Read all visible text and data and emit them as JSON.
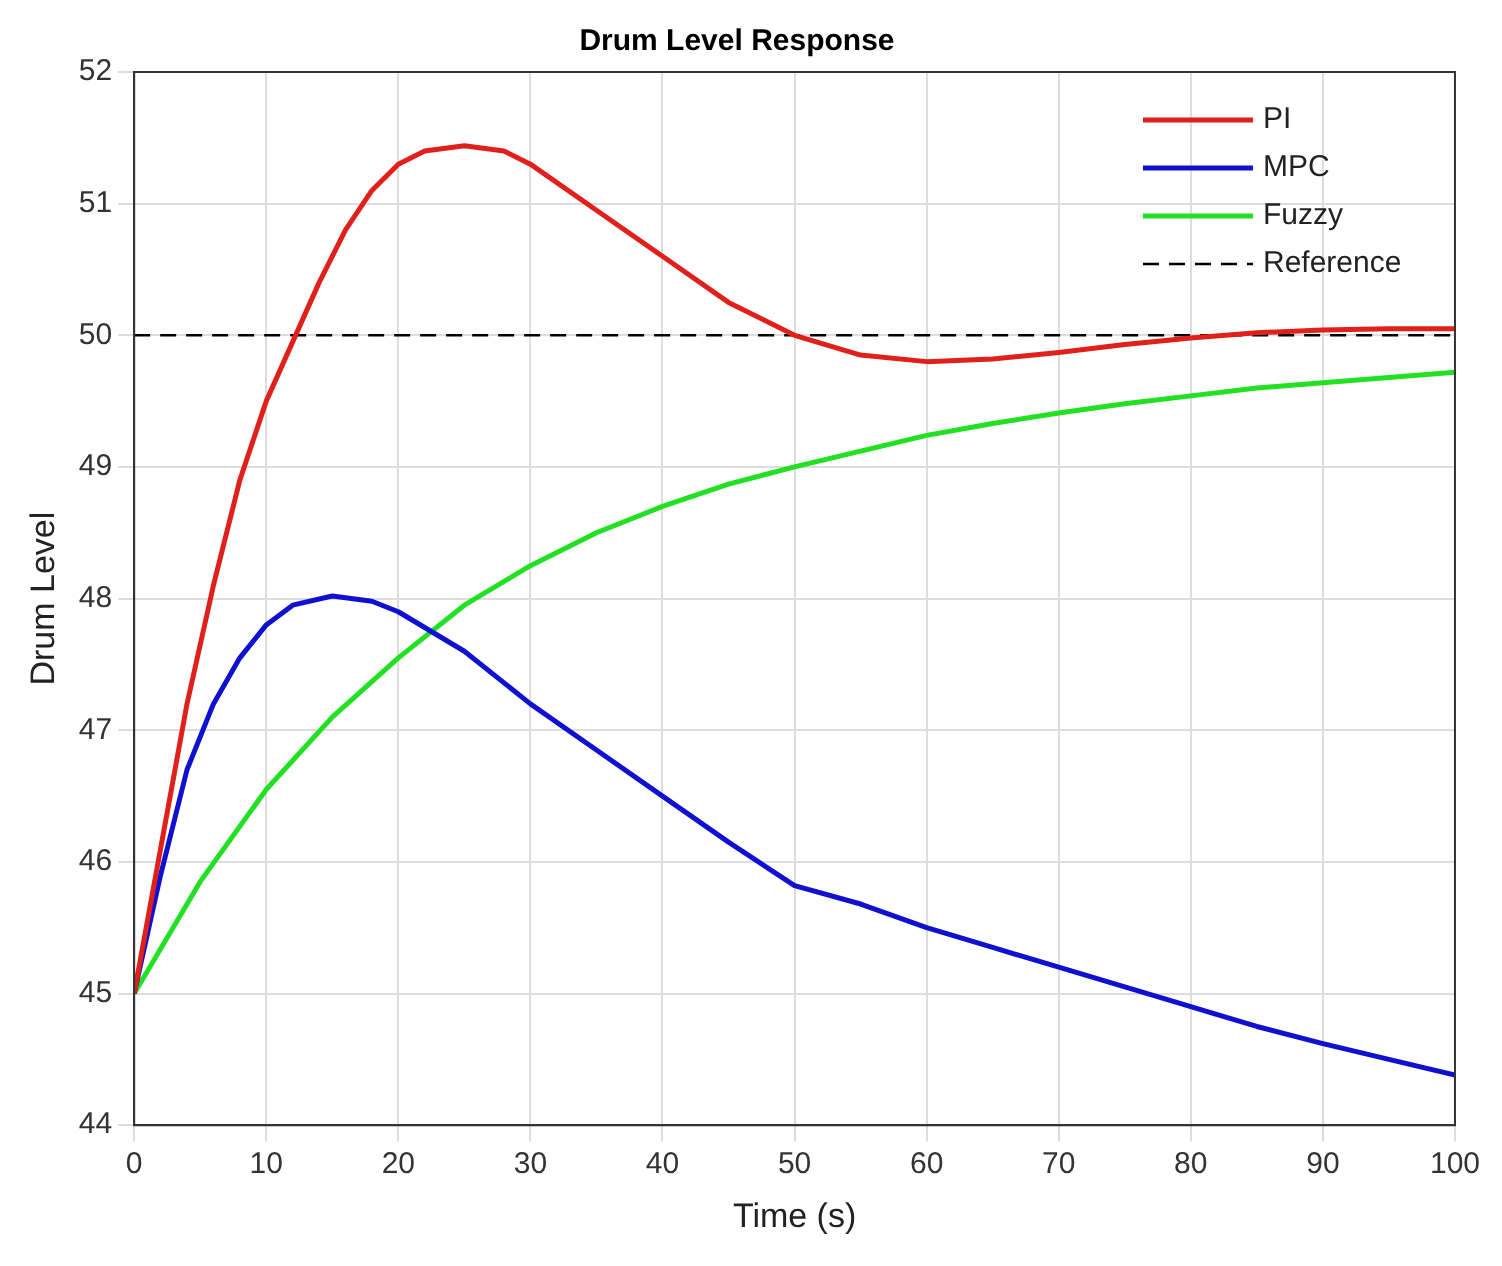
{
  "chart_data": {
    "type": "line",
    "title": "Drum Level Response",
    "xlabel": "Time (s)",
    "ylabel": "Drum Level",
    "xlim": [
      0,
      100
    ],
    "xticks": [
      0,
      10,
      20,
      30,
      40,
      50,
      60,
      70,
      80,
      90,
      100
    ],
    "ylim": [
      44,
      52
    ],
    "yticks": [
      44,
      45,
      46,
      47,
      48,
      49,
      50,
      51,
      52
    ],
    "grid": true,
    "legend": "top right",
    "series": [
      {
        "name": "PI",
        "color": "#e0201b",
        "x": [
          0,
          2,
          4,
          6,
          8,
          10,
          12,
          14,
          16,
          18,
          20,
          22,
          25,
          28,
          30,
          35,
          40,
          45,
          50,
          55,
          60,
          65,
          70,
          75,
          80,
          85,
          90,
          95,
          100
        ],
        "values": [
          45,
          46.1,
          47.2,
          48.1,
          48.9,
          49.5,
          49.95,
          50.4,
          50.8,
          51.1,
          51.3,
          51.4,
          51.44,
          51.4,
          51.3,
          50.95,
          50.6,
          50.25,
          50.0,
          49.85,
          49.8,
          49.82,
          49.87,
          49.93,
          49.98,
          50.02,
          50.04,
          50.05,
          50.05
        ]
      },
      {
        "name": "MPC",
        "color": "#1010d0",
        "x": [
          0,
          2,
          4,
          6,
          8,
          10,
          12,
          15,
          18,
          20,
          25,
          30,
          35,
          40,
          45,
          50,
          55,
          60,
          65,
          70,
          75,
          80,
          85,
          90,
          95,
          100
        ],
        "values": [
          45,
          45.9,
          46.7,
          47.2,
          47.55,
          47.8,
          47.95,
          48.02,
          47.98,
          47.9,
          47.6,
          47.2,
          46.85,
          46.5,
          46.15,
          45.82,
          45.68,
          45.5,
          45.35,
          45.2,
          45.05,
          44.9,
          44.75,
          44.62,
          44.5,
          44.38
        ]
      },
      {
        "name": "Fuzzy",
        "color": "#22e022",
        "x": [
          0,
          5,
          10,
          15,
          20,
          25,
          30,
          35,
          40,
          45,
          50,
          55,
          60,
          65,
          70,
          75,
          80,
          85,
          90,
          95,
          100
        ],
        "values": [
          45,
          45.85,
          46.55,
          47.1,
          47.55,
          47.95,
          48.25,
          48.5,
          48.7,
          48.87,
          49.0,
          49.12,
          49.24,
          49.33,
          49.41,
          49.48,
          49.54,
          49.6,
          49.64,
          49.68,
          49.72
        ]
      },
      {
        "name": "Reference",
        "color": "#000000",
        "line_style": "dashed",
        "x": [
          0,
          100
        ],
        "values": [
          50,
          50
        ]
      }
    ]
  }
}
